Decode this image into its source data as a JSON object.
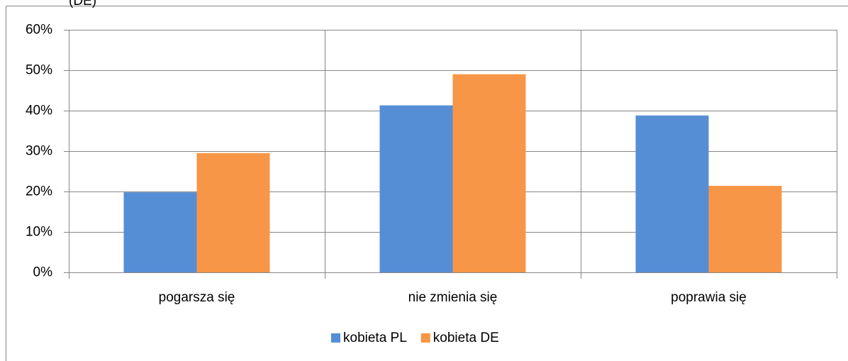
{
  "chart_data": {
    "type": "bar",
    "title": "(DE)",
    "categories": [
      "pogarsza się",
      "nie zmienia się",
      "poprawia się"
    ],
    "series": [
      {
        "name": "kobieta PL",
        "color": "#558ed5",
        "values": [
          19.8,
          41.3,
          38.8
        ]
      },
      {
        "name": "kobieta DE",
        "color": "#f79646",
        "values": [
          29.5,
          49,
          21.4
        ]
      }
    ],
    "ylim": [
      0,
      60
    ],
    "yticks": [
      {
        "value": 0,
        "label": "0%"
      },
      {
        "value": 10,
        "label": "10%"
      },
      {
        "value": 20,
        "label": "20%"
      },
      {
        "value": 30,
        "label": "30%"
      },
      {
        "value": 40,
        "label": "40%"
      },
      {
        "value": 50,
        "label": "50%"
      },
      {
        "value": 60,
        "label": "60%"
      }
    ],
    "grid": true,
    "legend": "bottom"
  }
}
